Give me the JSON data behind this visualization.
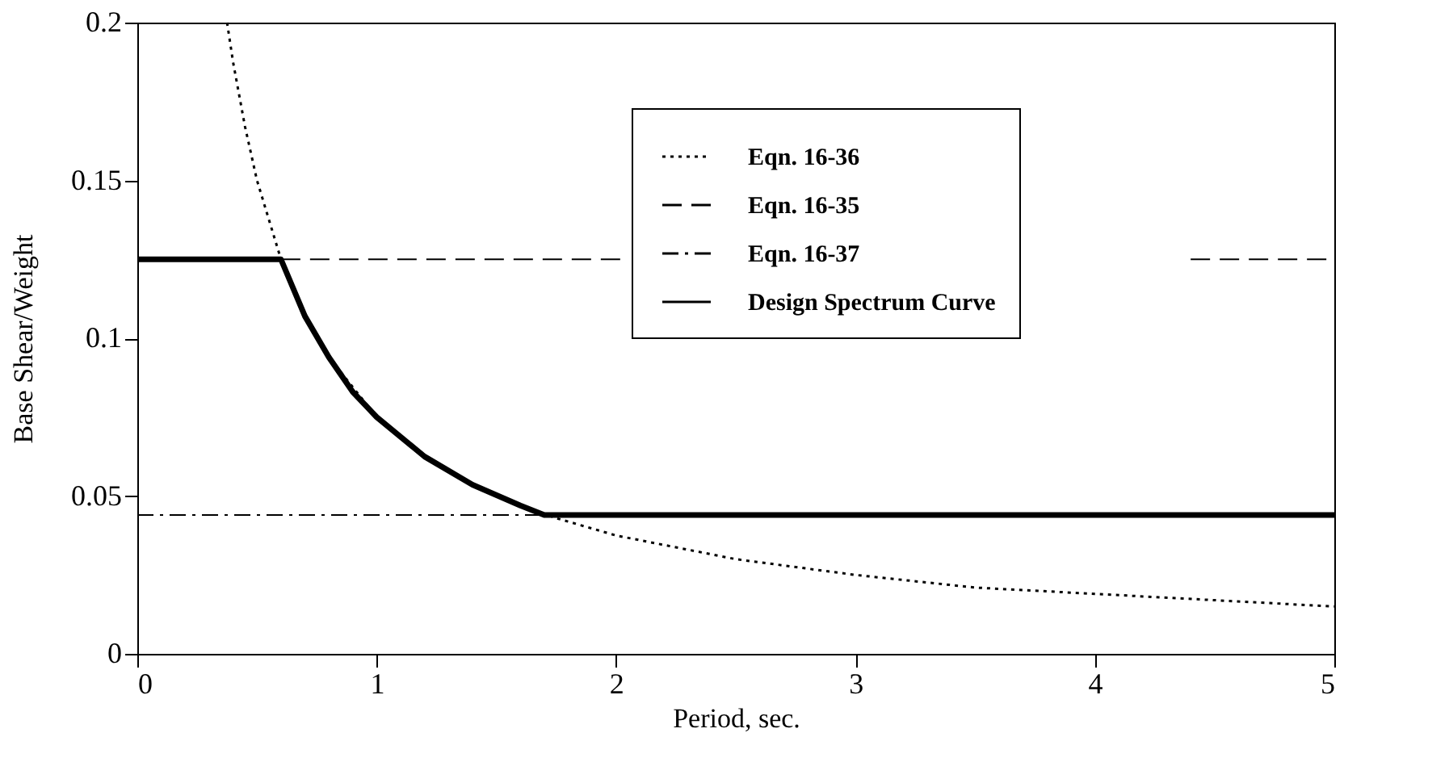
{
  "chart_data": {
    "type": "line",
    "xlabel": "Period, sec.",
    "ylabel": "Base Shear/Weight",
    "xlim": [
      0,
      5
    ],
    "xticks": [
      0,
      1,
      2,
      3,
      4,
      5
    ],
    "ylim": [
      0,
      0.2
    ],
    "yticks": [
      0,
      0.05,
      0.1,
      0.15,
      0.2
    ],
    "grid": false,
    "legend": "top right",
    "marker": "none",
    "series": [
      {
        "name": "Eqn. 16-36",
        "color": "#000000",
        "line_style": "dotted",
        "x": [
          0.375,
          0.4,
          0.45,
          0.5,
          0.6,
          0.7,
          0.8,
          1,
          1.25,
          1.5,
          1.75,
          2,
          2.5,
          3,
          3.5,
          4,
          4.5,
          5
        ],
        "values": [
          0.2,
          0.1875,
          0.167,
          0.15,
          0.125,
          0.107,
          0.094,
          0.075,
          0.06,
          0.05,
          0.043,
          0.0375,
          0.03,
          0.025,
          0.021,
          0.019,
          0.017,
          0.015
        ]
      },
      {
        "name": "Eqn. 16-35",
        "color": "#000000",
        "line_style": "dashed",
        "x": [
          0.6,
          2.05,
          3.2,
          4.4,
          5
        ],
        "values": [
          0.125,
          0.125,
          null,
          0.125,
          0.125
        ]
      },
      {
        "name": "Eqn. 16-37",
        "color": "#000000",
        "line_style": "dashdot",
        "x": [
          0,
          1.7
        ],
        "values": [
          0.044,
          0.044
        ]
      },
      {
        "name": "Design Spectrum Curve",
        "color": "#000000",
        "line_style": "solid",
        "x": [
          0,
          0.6,
          0.7,
          0.8,
          0.9,
          1.0,
          1.2,
          1.4,
          1.6,
          1.7,
          5
        ],
        "values": [
          0.125,
          0.125,
          0.107,
          0.094,
          0.083,
          0.075,
          0.0625,
          0.0536,
          0.047,
          0.044,
          0.044
        ]
      }
    ]
  }
}
